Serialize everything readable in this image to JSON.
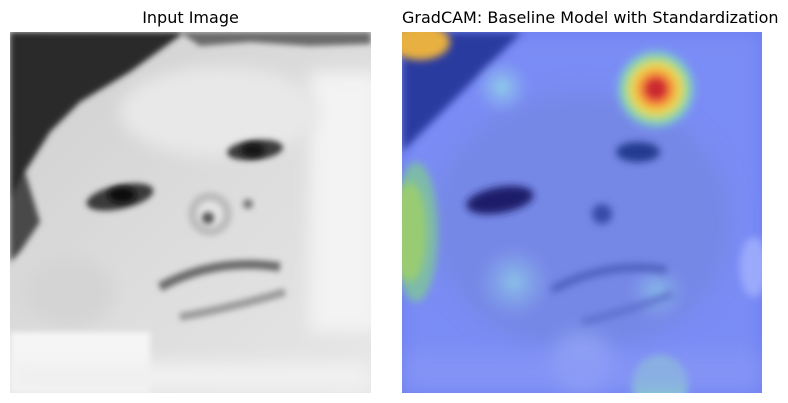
{
  "panels": [
    {
      "title": "Input Image"
    },
    {
      "title": "GradCAM: Baseline Model with Standardization"
    }
  ]
}
